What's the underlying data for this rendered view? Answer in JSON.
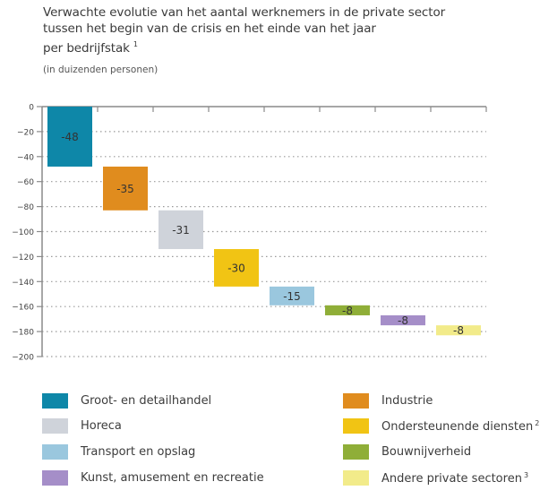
{
  "chart_data": {
    "type": "waterfall-bar",
    "title_lines": [
      "Verwachte evolutie van het aantal werknemers in de private sector",
      "tussen het begin van de crisis en het einde van het jaar",
      "per bedrijfstak"
    ],
    "title_footnote": "1",
    "subtitle": "(in duizenden personen)",
    "ylabel": "",
    "xlabel": "",
    "ylim": [
      -200,
      0
    ],
    "yticks": [
      0,
      -20,
      -40,
      -60,
      -80,
      -100,
      -120,
      -140,
      -160,
      -180,
      -200
    ],
    "ytick_labels": [
      "0",
      "−20",
      "−40",
      "−60",
      "−80",
      "−100",
      "−120",
      "−140",
      "−160",
      "−180",
      "−200"
    ],
    "grid": "horizontal-dotted",
    "legend_position": "bottom",
    "series": [
      {
        "name": "Groot- en detailhandel",
        "value": -48,
        "label": "-48",
        "color": "#0e87a8",
        "footnote": ""
      },
      {
        "name": "Industrie",
        "value": -35,
        "label": "-35",
        "color": "#e08c1e",
        "footnote": ""
      },
      {
        "name": "Horeca",
        "value": -31,
        "label": "-31",
        "color": "#cfd3da",
        "footnote": ""
      },
      {
        "name": "Ondersteunende diensten",
        "value": -30,
        "label": "-30",
        "color": "#f1c414",
        "footnote": "2"
      },
      {
        "name": "Transport en opslag",
        "value": -15,
        "label": "-15",
        "color": "#9ac7de",
        "footnote": ""
      },
      {
        "name": "Bouwnijverheid",
        "value": -8,
        "label": "-8",
        "color": "#8fae38",
        "footnote": ""
      },
      {
        "name": "Kunst, amusement en recreatie",
        "value": -8,
        "label": "-8",
        "color": "#a58ec8",
        "footnote": ""
      },
      {
        "name": "Andere private sectoren",
        "value": -8,
        "label": "-8",
        "color": "#f2eb8a",
        "footnote": "3"
      }
    ]
  },
  "legend": {
    "left": [
      {
        "name": "Groot- en detailhandel",
        "color": "#0e87a8",
        "footnote": ""
      },
      {
        "name": "Horeca",
        "color": "#cfd3da",
        "footnote": ""
      },
      {
        "name": "Transport en opslag",
        "color": "#9ac7de",
        "footnote": ""
      },
      {
        "name": "Kunst, amusement en recreatie",
        "color": "#a58ec8",
        "footnote": ""
      }
    ],
    "right": [
      {
        "name": "Industrie",
        "color": "#e08c1e",
        "footnote": ""
      },
      {
        "name": "Ondersteunende diensten",
        "color": "#f1c414",
        "footnote": "2"
      },
      {
        "name": "Bouwnijverheid",
        "color": "#8fae38",
        "footnote": ""
      },
      {
        "name": "Andere private sectoren",
        "color": "#f2eb8a",
        "footnote": "3"
      }
    ]
  }
}
